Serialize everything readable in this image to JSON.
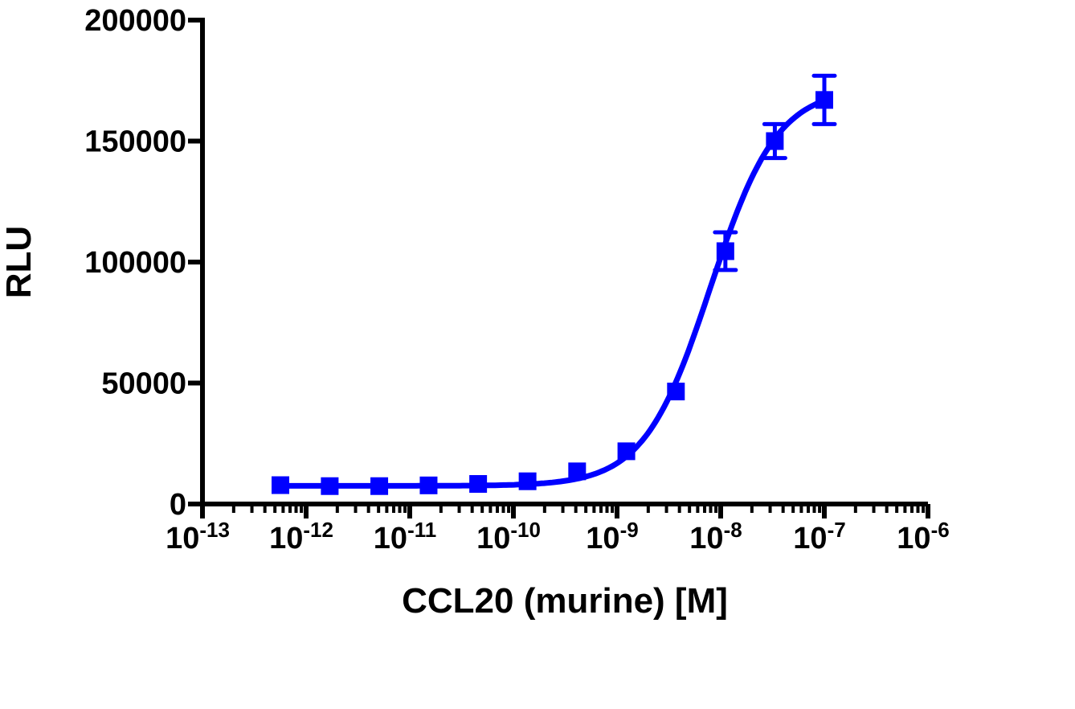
{
  "chart_data": {
    "type": "scatter",
    "title": "",
    "xlabel": "CCL20 (murine) [M]",
    "ylabel": "RLU",
    "x_scale": "log",
    "xlim": [
      1e-13,
      1e-06
    ],
    "ylim": [
      0,
      200000
    ],
    "x_ticks": [
      {
        "base": "10",
        "exp": "-13"
      },
      {
        "base": "10",
        "exp": "-12"
      },
      {
        "base": "10",
        "exp": "-11"
      },
      {
        "base": "10",
        "exp": "-10"
      },
      {
        "base": "10",
        "exp": "-9"
      },
      {
        "base": "10",
        "exp": "-8"
      },
      {
        "base": "10",
        "exp": "-7"
      },
      {
        "base": "10",
        "exp": "-6"
      }
    ],
    "y_ticks": [
      "0",
      "50000",
      "100000",
      "150000",
      "200000"
    ],
    "grid": false,
    "legend": "none",
    "color": "#0000ff",
    "series": [
      {
        "marker": "square",
        "fit": "sigmoidal dose-response curve",
        "x": [
          5.65e-13,
          1.69e-12,
          5.08e-12,
          1.52e-11,
          4.57e-11,
          1.37e-10,
          4.12e-10,
          1.23e-09,
          3.7e-09,
          1.11e-08,
          3.33e-08,
          1e-07
        ],
        "y": [
          7800,
          7400,
          7400,
          7700,
          8300,
          9400,
          13500,
          21800,
          46500,
          104500,
          150000,
          167000
        ],
        "error": [
          0,
          0,
          0,
          0,
          0,
          0,
          0,
          0,
          0,
          7800,
          7000,
          10000
        ]
      }
    ]
  }
}
